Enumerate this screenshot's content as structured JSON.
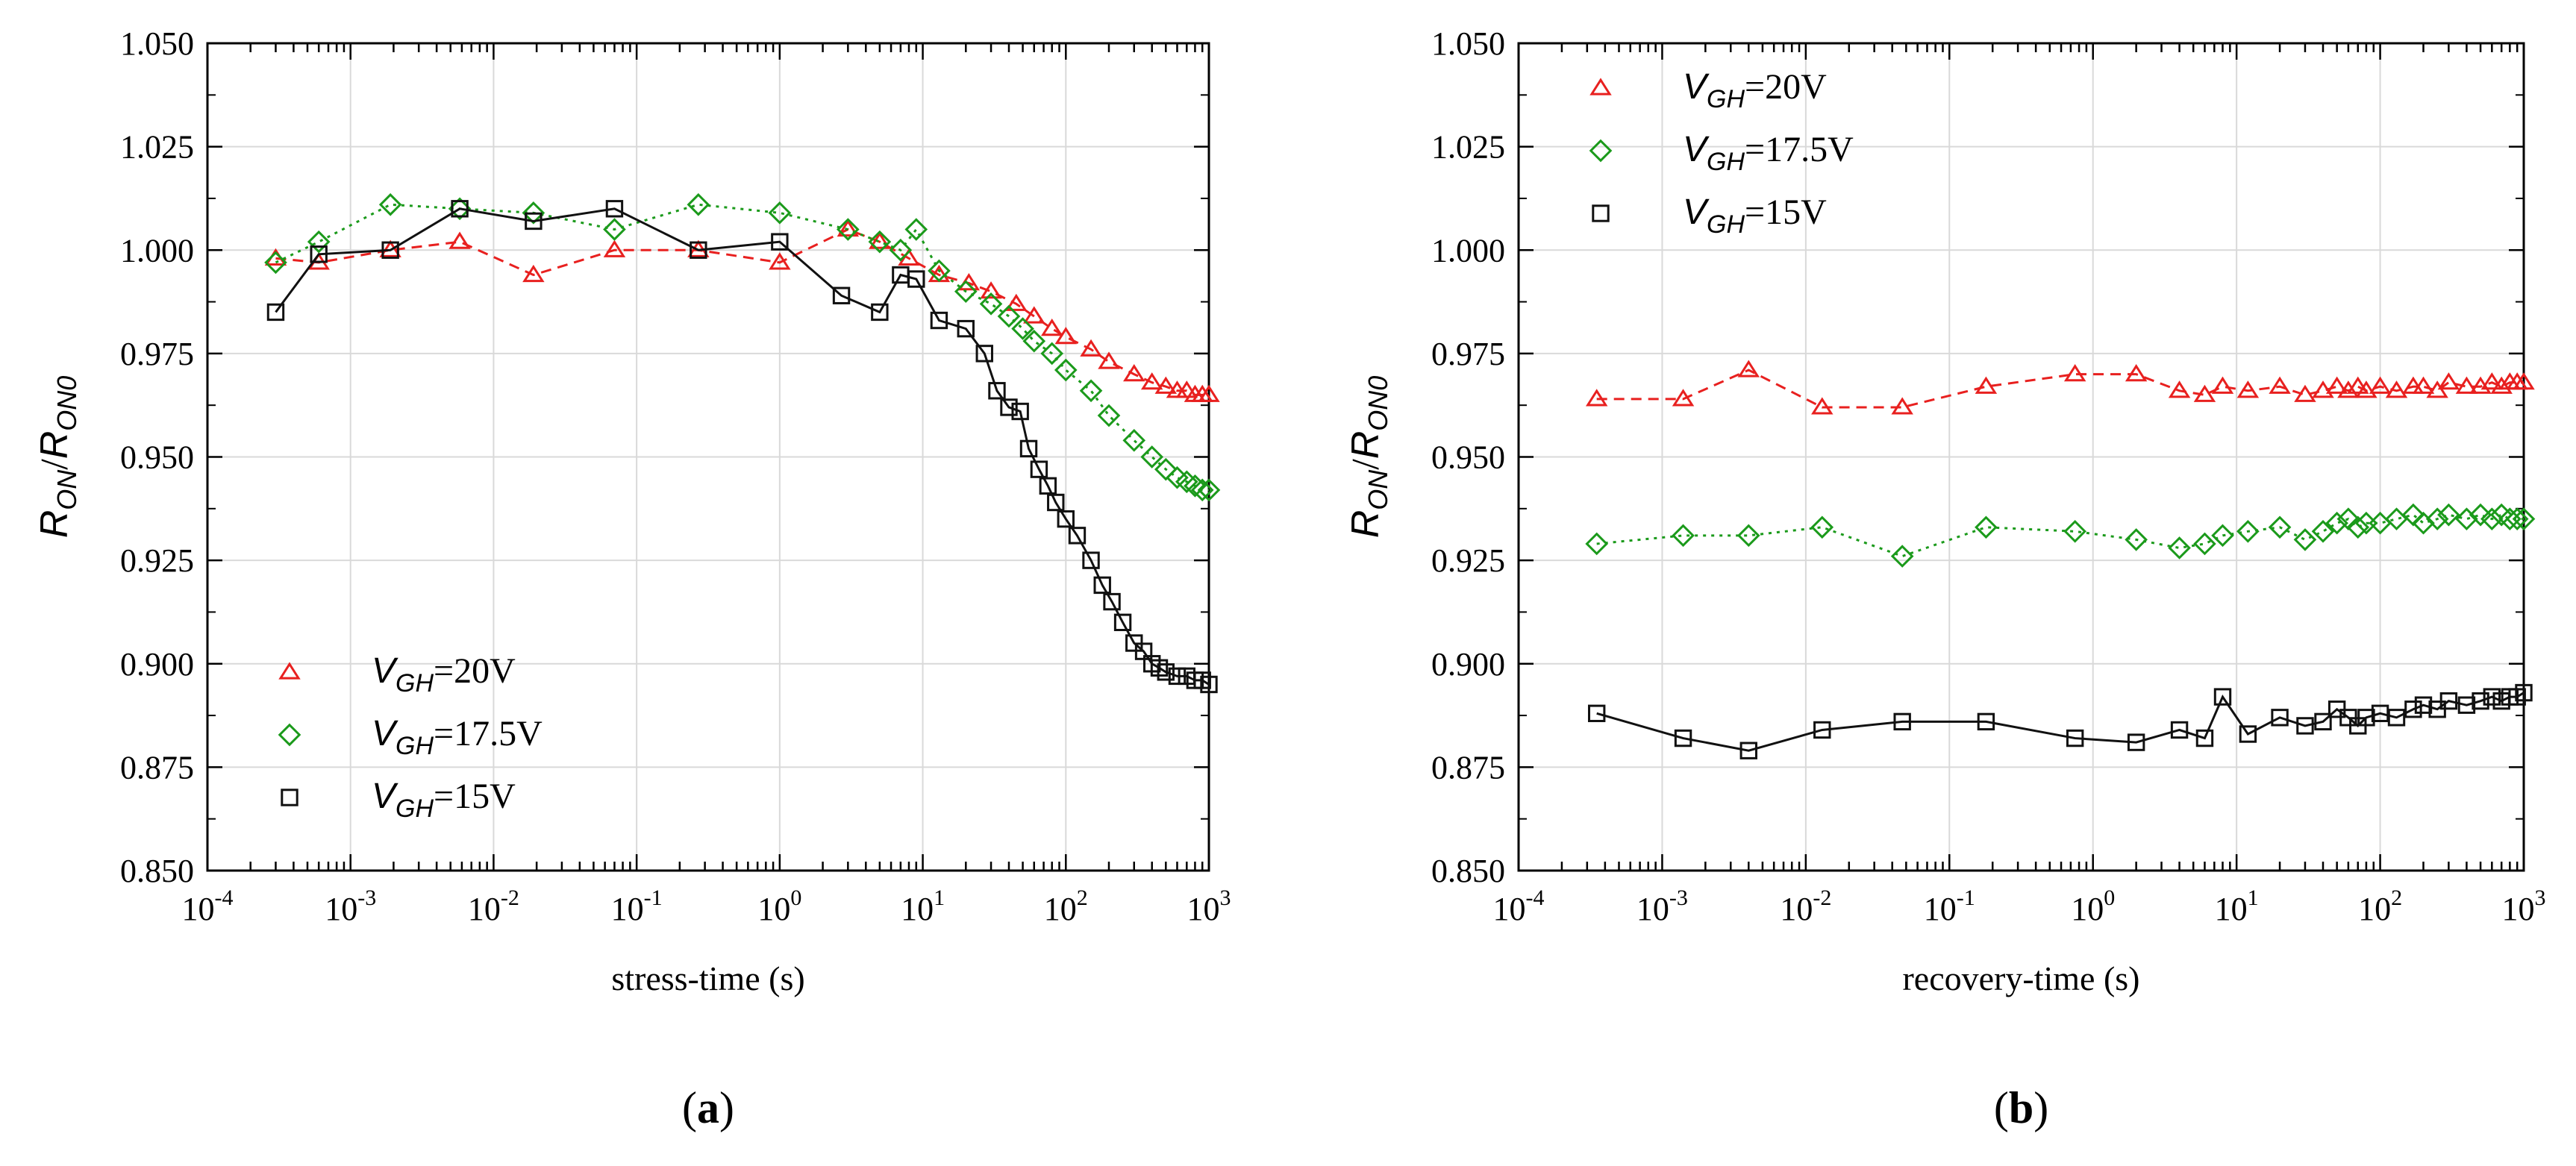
{
  "colors": {
    "vgh20": "#e8201f",
    "vgh175": "#1b9a1b",
    "vgh15": "#111111"
  },
  "chart_data": [
    {
      "type": "scatter",
      "panel_label": "a",
      "xlabel": "stress-time (s)",
      "ylabel": {
        "var": "R",
        "num_sub": "ON",
        "den_sub": "ON0"
      },
      "x_scale": "log",
      "xlim": [
        0.0001,
        1000
      ],
      "ylim": [
        0.85,
        1.05
      ],
      "yticks": [
        "0.850",
        "0.875",
        "0.900",
        "0.925",
        "0.950",
        "0.975",
        "1.000",
        "1.025",
        "1.050"
      ],
      "xtick_exponents": [
        "-4",
        "-3",
        "-2",
        "-1",
        "0",
        "1",
        "2",
        "3"
      ],
      "grid": true,
      "legend_position": "bottom-left",
      "series": [
        {
          "name": "=20V",
          "var": "V",
          "sub": "GH",
          "color_key": "vgh20",
          "marker": "triangle",
          "line": "dashed",
          "x": [
            0.0003,
            0.0006,
            0.0019,
            0.0058,
            0.019,
            0.07,
            0.27,
            1.0,
            3,
            5,
            8,
            13,
            21,
            30,
            45,
            60,
            80,
            100,
            150,
            200,
            300,
            400,
            500,
            600,
            700,
            800,
            900,
            1000
          ],
          "y": [
            0.998,
            0.997,
            1.0,
            1.002,
            0.994,
            1.0,
            1.0,
            0.997,
            1.005,
            1.002,
            0.998,
            0.994,
            0.992,
            0.99,
            0.987,
            0.984,
            0.981,
            0.979,
            0.976,
            0.973,
            0.97,
            0.968,
            0.967,
            0.966,
            0.966,
            0.965,
            0.965,
            0.965
          ]
        },
        {
          "name": "=17.5V",
          "var": "V",
          "sub": "GH",
          "color_key": "vgh175",
          "marker": "diamond",
          "line": "dotted",
          "x": [
            0.0003,
            0.0006,
            0.0019,
            0.0058,
            0.019,
            0.07,
            0.27,
            1.0,
            3,
            5,
            7,
            9,
            13,
            20,
            30,
            40,
            50,
            60,
            80,
            100,
            150,
            200,
            300,
            400,
            500,
            600,
            700,
            800,
            900,
            1000
          ],
          "y": [
            0.997,
            1.002,
            1.011,
            1.01,
            1.009,
            1.005,
            1.011,
            1.009,
            1.005,
            1.002,
            1.0,
            1.005,
            0.995,
            0.99,
            0.987,
            0.984,
            0.981,
            0.978,
            0.975,
            0.971,
            0.966,
            0.96,
            0.954,
            0.95,
            0.947,
            0.945,
            0.944,
            0.943,
            0.942,
            0.942
          ]
        },
        {
          "name": "=15V",
          "var": "V",
          "sub": "GH",
          "color_key": "vgh15",
          "marker": "square",
          "line": "solid",
          "x": [
            0.0003,
            0.0006,
            0.0019,
            0.0058,
            0.019,
            0.07,
            0.27,
            1.0,
            2.7,
            5,
            7,
            9,
            13,
            20,
            27,
            33,
            40,
            48,
            55,
            65,
            75,
            85,
            100,
            120,
            150,
            180,
            210,
            250,
            300,
            350,
            400,
            450,
            500,
            600,
            700,
            800,
            900,
            1000
          ],
          "y": [
            0.985,
            0.999,
            1.0,
            1.01,
            1.007,
            1.01,
            1.0,
            1.002,
            0.989,
            0.985,
            0.994,
            0.993,
            0.983,
            0.981,
            0.975,
            0.966,
            0.962,
            0.961,
            0.952,
            0.947,
            0.943,
            0.939,
            0.935,
            0.931,
            0.925,
            0.919,
            0.915,
            0.91,
            0.905,
            0.903,
            0.9,
            0.899,
            0.898,
            0.897,
            0.897,
            0.896,
            0.896,
            0.895
          ]
        }
      ]
    },
    {
      "type": "scatter",
      "panel_label": "b",
      "xlabel": "recovery-time (s)",
      "ylabel": {
        "var": "R",
        "num_sub": "ON",
        "den_sub": "ON0"
      },
      "x_scale": "log",
      "xlim": [
        0.0001,
        1000
      ],
      "ylim": [
        0.85,
        1.05
      ],
      "yticks": [
        "0.850",
        "0.875",
        "0.900",
        "0.925",
        "0.950",
        "0.975",
        "1.000",
        "1.025",
        "1.050"
      ],
      "xtick_exponents": [
        "-4",
        "-3",
        "-2",
        "-1",
        "0",
        "1",
        "2",
        "3"
      ],
      "grid": true,
      "legend_position": "top-left",
      "series": [
        {
          "name": "=20V",
          "var": "V",
          "sub": "GH",
          "color_key": "vgh20",
          "marker": "triangle",
          "line": "dashed",
          "x": [
            0.00035,
            0.0014,
            0.004,
            0.013,
            0.047,
            0.18,
            0.75,
            2,
            4,
            6,
            8,
            12,
            20,
            30,
            40,
            50,
            60,
            70,
            80,
            100,
            130,
            170,
            200,
            250,
            300,
            400,
            500,
            600,
            700,
            800,
            900,
            1000
          ],
          "y": [
            0.964,
            0.964,
            0.971,
            0.962,
            0.962,
            0.967,
            0.97,
            0.97,
            0.966,
            0.965,
            0.967,
            0.966,
            0.967,
            0.965,
            0.966,
            0.967,
            0.966,
            0.967,
            0.966,
            0.967,
            0.966,
            0.967,
            0.967,
            0.966,
            0.968,
            0.967,
            0.967,
            0.968,
            0.967,
            0.968,
            0.968,
            0.968
          ]
        },
        {
          "name": "=17.5V",
          "var": "V",
          "sub": "GH",
          "color_key": "vgh175",
          "marker": "diamond",
          "line": "dotted",
          "x": [
            0.00035,
            0.0014,
            0.004,
            0.013,
            0.047,
            0.18,
            0.75,
            2,
            4,
            6,
            8,
            12,
            20,
            30,
            40,
            50,
            60,
            70,
            80,
            100,
            130,
            170,
            200,
            250,
            300,
            400,
            500,
            600,
            700,
            800,
            900,
            1000
          ],
          "y": [
            0.929,
            0.931,
            0.931,
            0.933,
            0.926,
            0.933,
            0.932,
            0.93,
            0.928,
            0.929,
            0.931,
            0.932,
            0.933,
            0.93,
            0.932,
            0.934,
            0.935,
            0.933,
            0.934,
            0.934,
            0.935,
            0.936,
            0.934,
            0.935,
            0.936,
            0.935,
            0.936,
            0.935,
            0.936,
            0.935,
            0.935,
            0.935
          ]
        },
        {
          "name": "=15V",
          "var": "V",
          "sub": "GH",
          "color_key": "vgh15",
          "marker": "square",
          "line": "solid",
          "x": [
            0.00035,
            0.0014,
            0.004,
            0.013,
            0.047,
            0.18,
            0.75,
            2,
            4,
            6,
            8,
            12,
            20,
            30,
            40,
            50,
            60,
            70,
            80,
            100,
            130,
            170,
            200,
            250,
            300,
            400,
            500,
            600,
            700,
            800,
            900,
            1000
          ],
          "y": [
            0.888,
            0.882,
            0.879,
            0.884,
            0.886,
            0.886,
            0.882,
            0.881,
            0.884,
            0.882,
            0.892,
            0.883,
            0.887,
            0.885,
            0.886,
            0.889,
            0.887,
            0.885,
            0.887,
            0.888,
            0.887,
            0.889,
            0.89,
            0.889,
            0.891,
            0.89,
            0.891,
            0.892,
            0.891,
            0.892,
            0.892,
            0.893
          ]
        }
      ]
    }
  ]
}
